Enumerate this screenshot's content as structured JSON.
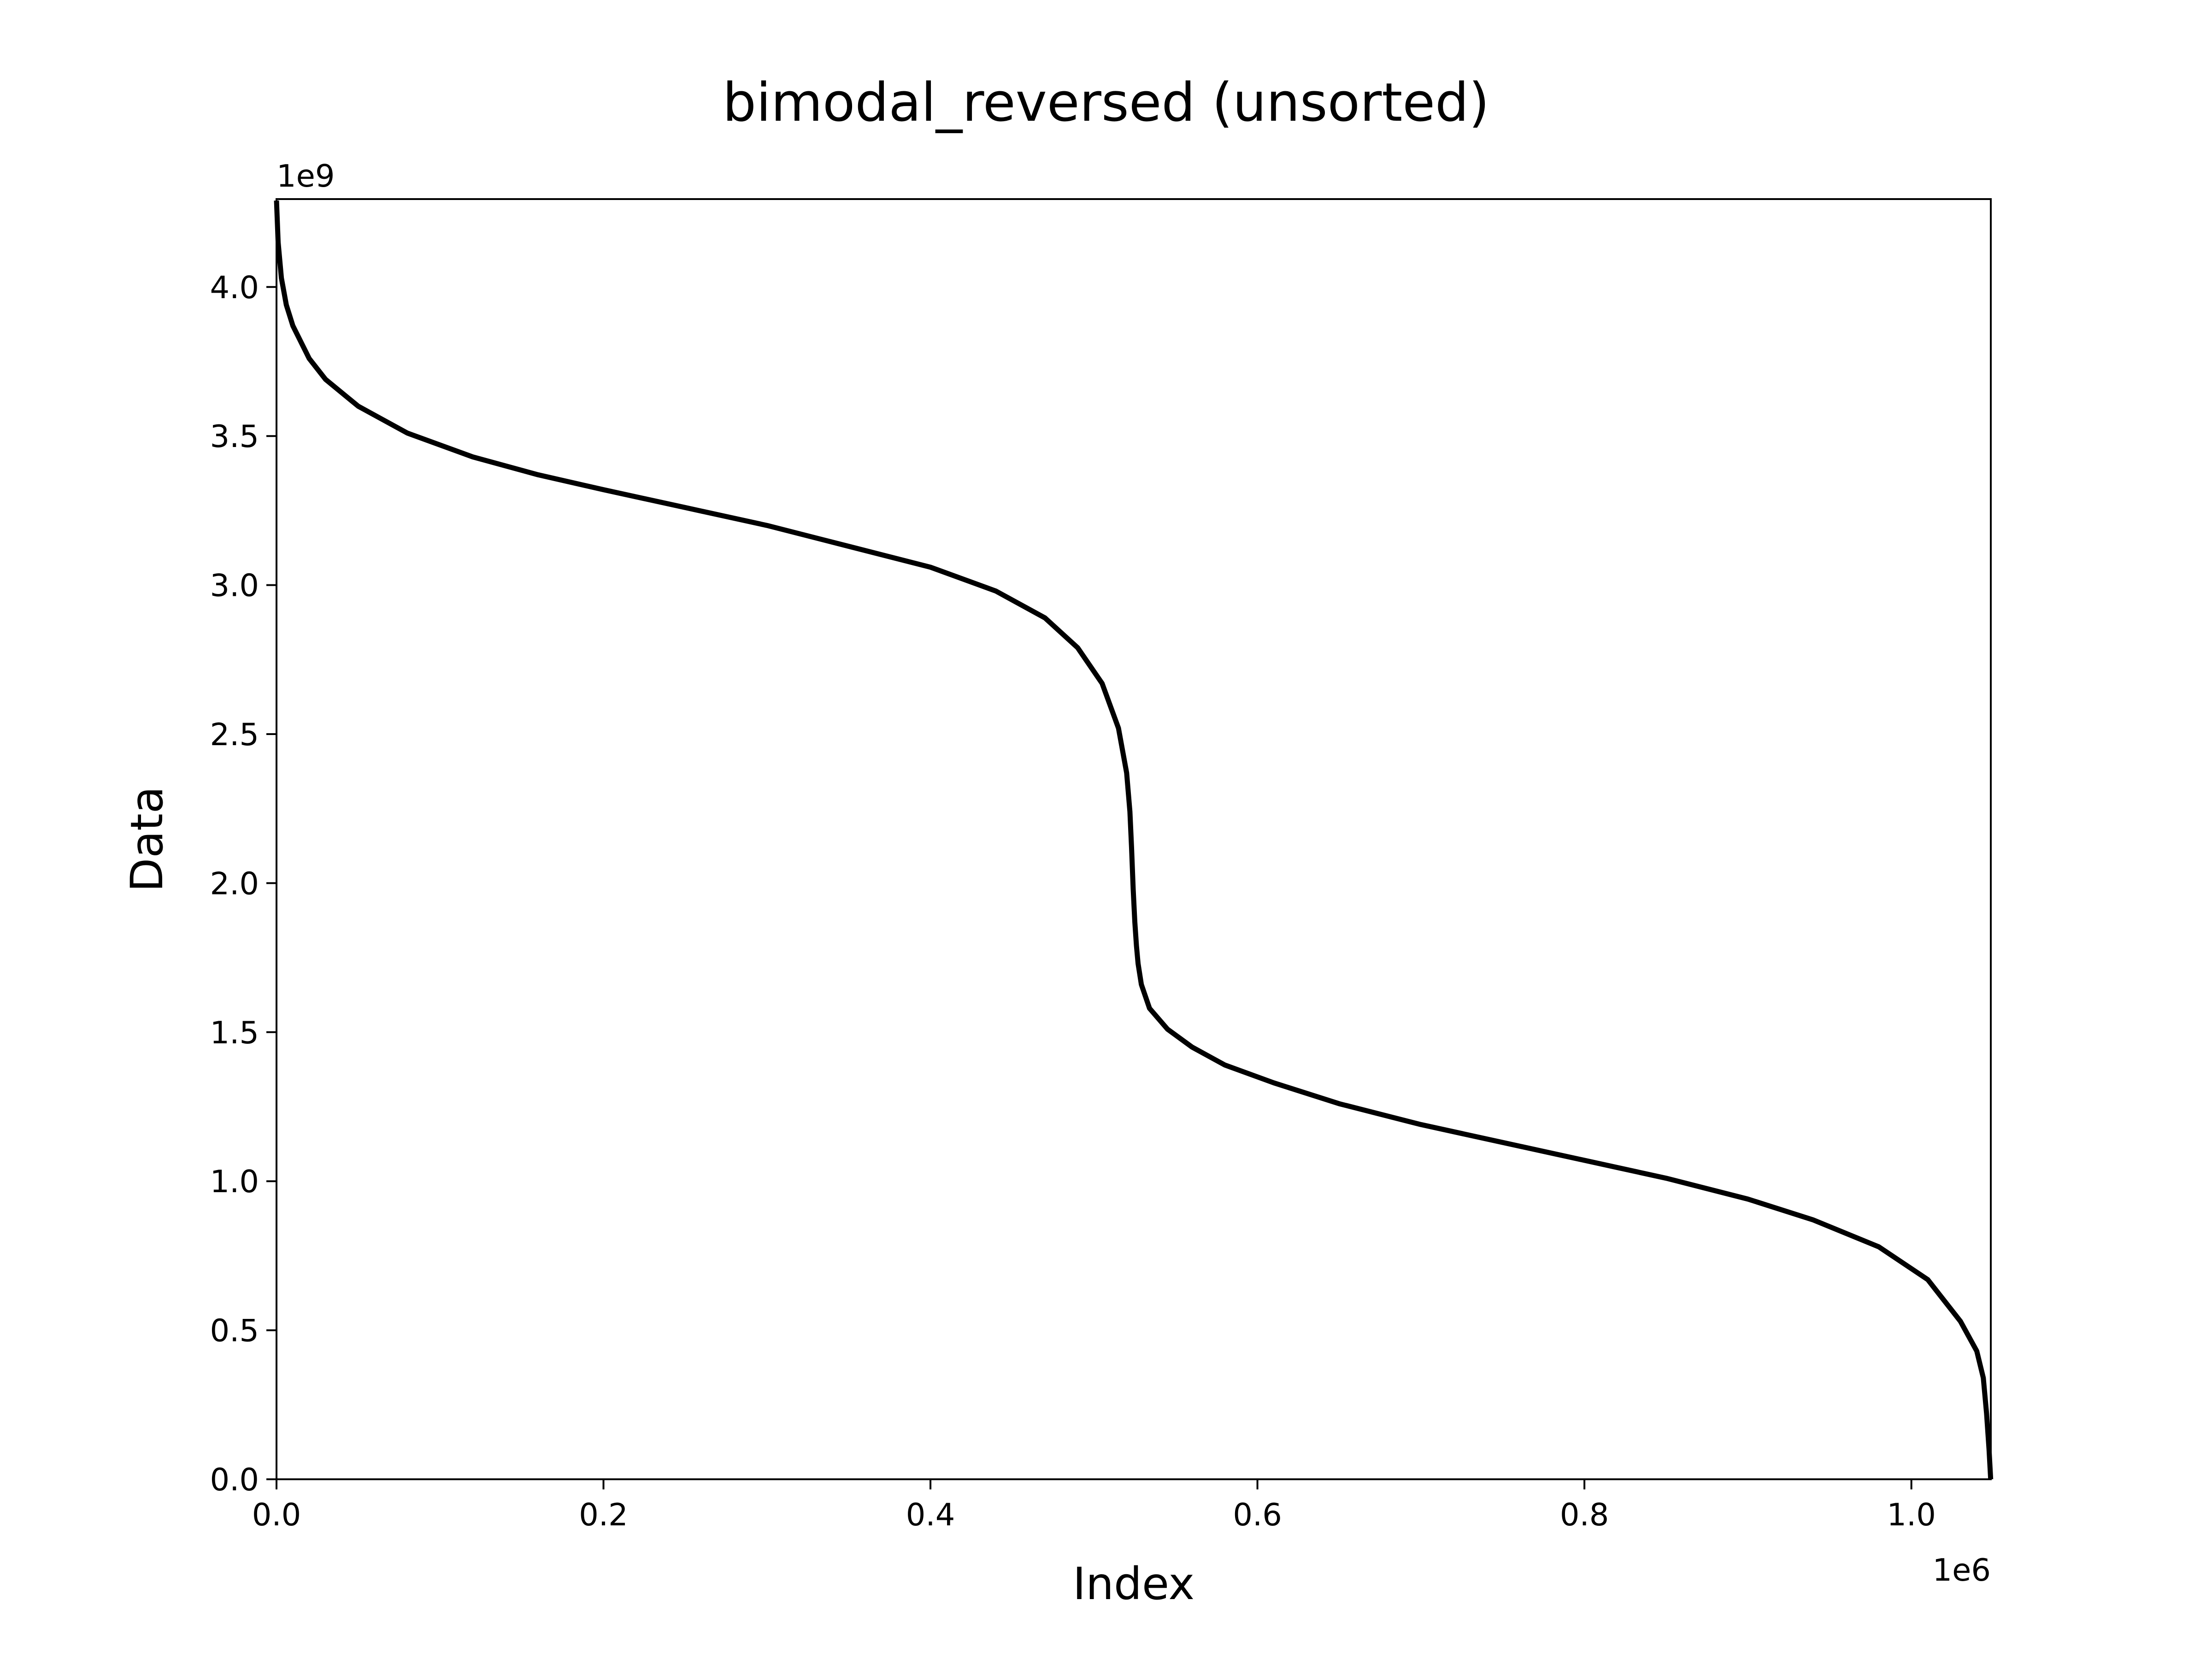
{
  "chart_data": {
    "type": "line",
    "title": "bimodal_reversed (unsorted)",
    "xlabel": "Index",
    "ylabel": "Data",
    "x_offset_label": "1e6",
    "y_offset_label": "1e9",
    "xlim": [
      0,
      1048576
    ],
    "ylim": [
      0,
      4294967295
    ],
    "grid": false,
    "x_ticks": [
      {
        "value": 0,
        "label": "0.0"
      },
      {
        "value": 200000,
        "label": "0.2"
      },
      {
        "value": 400000,
        "label": "0.4"
      },
      {
        "value": 600000,
        "label": "0.6"
      },
      {
        "value": 800000,
        "label": "0.8"
      },
      {
        "value": 1000000,
        "label": "1.0"
      }
    ],
    "y_ticks": [
      {
        "value": 0,
        "label": "0.0"
      },
      {
        "value": 500000000,
        "label": "0.5"
      },
      {
        "value": 1000000000,
        "label": "1.0"
      },
      {
        "value": 1500000000,
        "label": "1.5"
      },
      {
        "value": 2000000000,
        "label": "2.0"
      },
      {
        "value": 2500000000,
        "label": "2.5"
      },
      {
        "value": 3000000000,
        "label": "3.0"
      },
      {
        "value": 3500000000,
        "label": "3.5"
      },
      {
        "value": 4000000000,
        "label": "4.0"
      }
    ],
    "line_color": "#000000",
    "series": [
      {
        "x": [
          0,
          1000,
          3000,
          6000,
          10000,
          20000,
          30000,
          50000,
          80000,
          120000,
          160000,
          200000,
          250000,
          300000,
          350000,
          400000,
          440000,
          470000,
          490000,
          505000,
          515000,
          520000,
          522000,
          523000,
          524000,
          525000,
          526000,
          527000,
          529000,
          534000,
          545000,
          560000,
          580000,
          610000,
          650000,
          700000,
          750000,
          800000,
          850000,
          900000,
          940000,
          980000,
          1010000,
          1030000,
          1040000,
          1044000,
          1046000,
          1047500,
          1048500
        ],
        "y": [
          4290000000,
          4150000000,
          4030000000,
          3940000000,
          3870000000,
          3760000000,
          3690000000,
          3600000000,
          3510000000,
          3430000000,
          3370000000,
          3320000000,
          3260000000,
          3200000000,
          3130000000,
          3060000000,
          2980000000,
          2890000000,
          2790000000,
          2670000000,
          2520000000,
          2370000000,
          2240000000,
          2120000000,
          1980000000,
          1870000000,
          1790000000,
          1730000000,
          1660000000,
          1580000000,
          1510000000,
          1450000000,
          1390000000,
          1330000000,
          1260000000,
          1190000000,
          1130000000,
          1070000000,
          1010000000,
          940000000,
          870000000,
          780000000,
          670000000,
          530000000,
          430000000,
          340000000,
          220000000,
          100000000,
          0
        ]
      }
    ]
  }
}
